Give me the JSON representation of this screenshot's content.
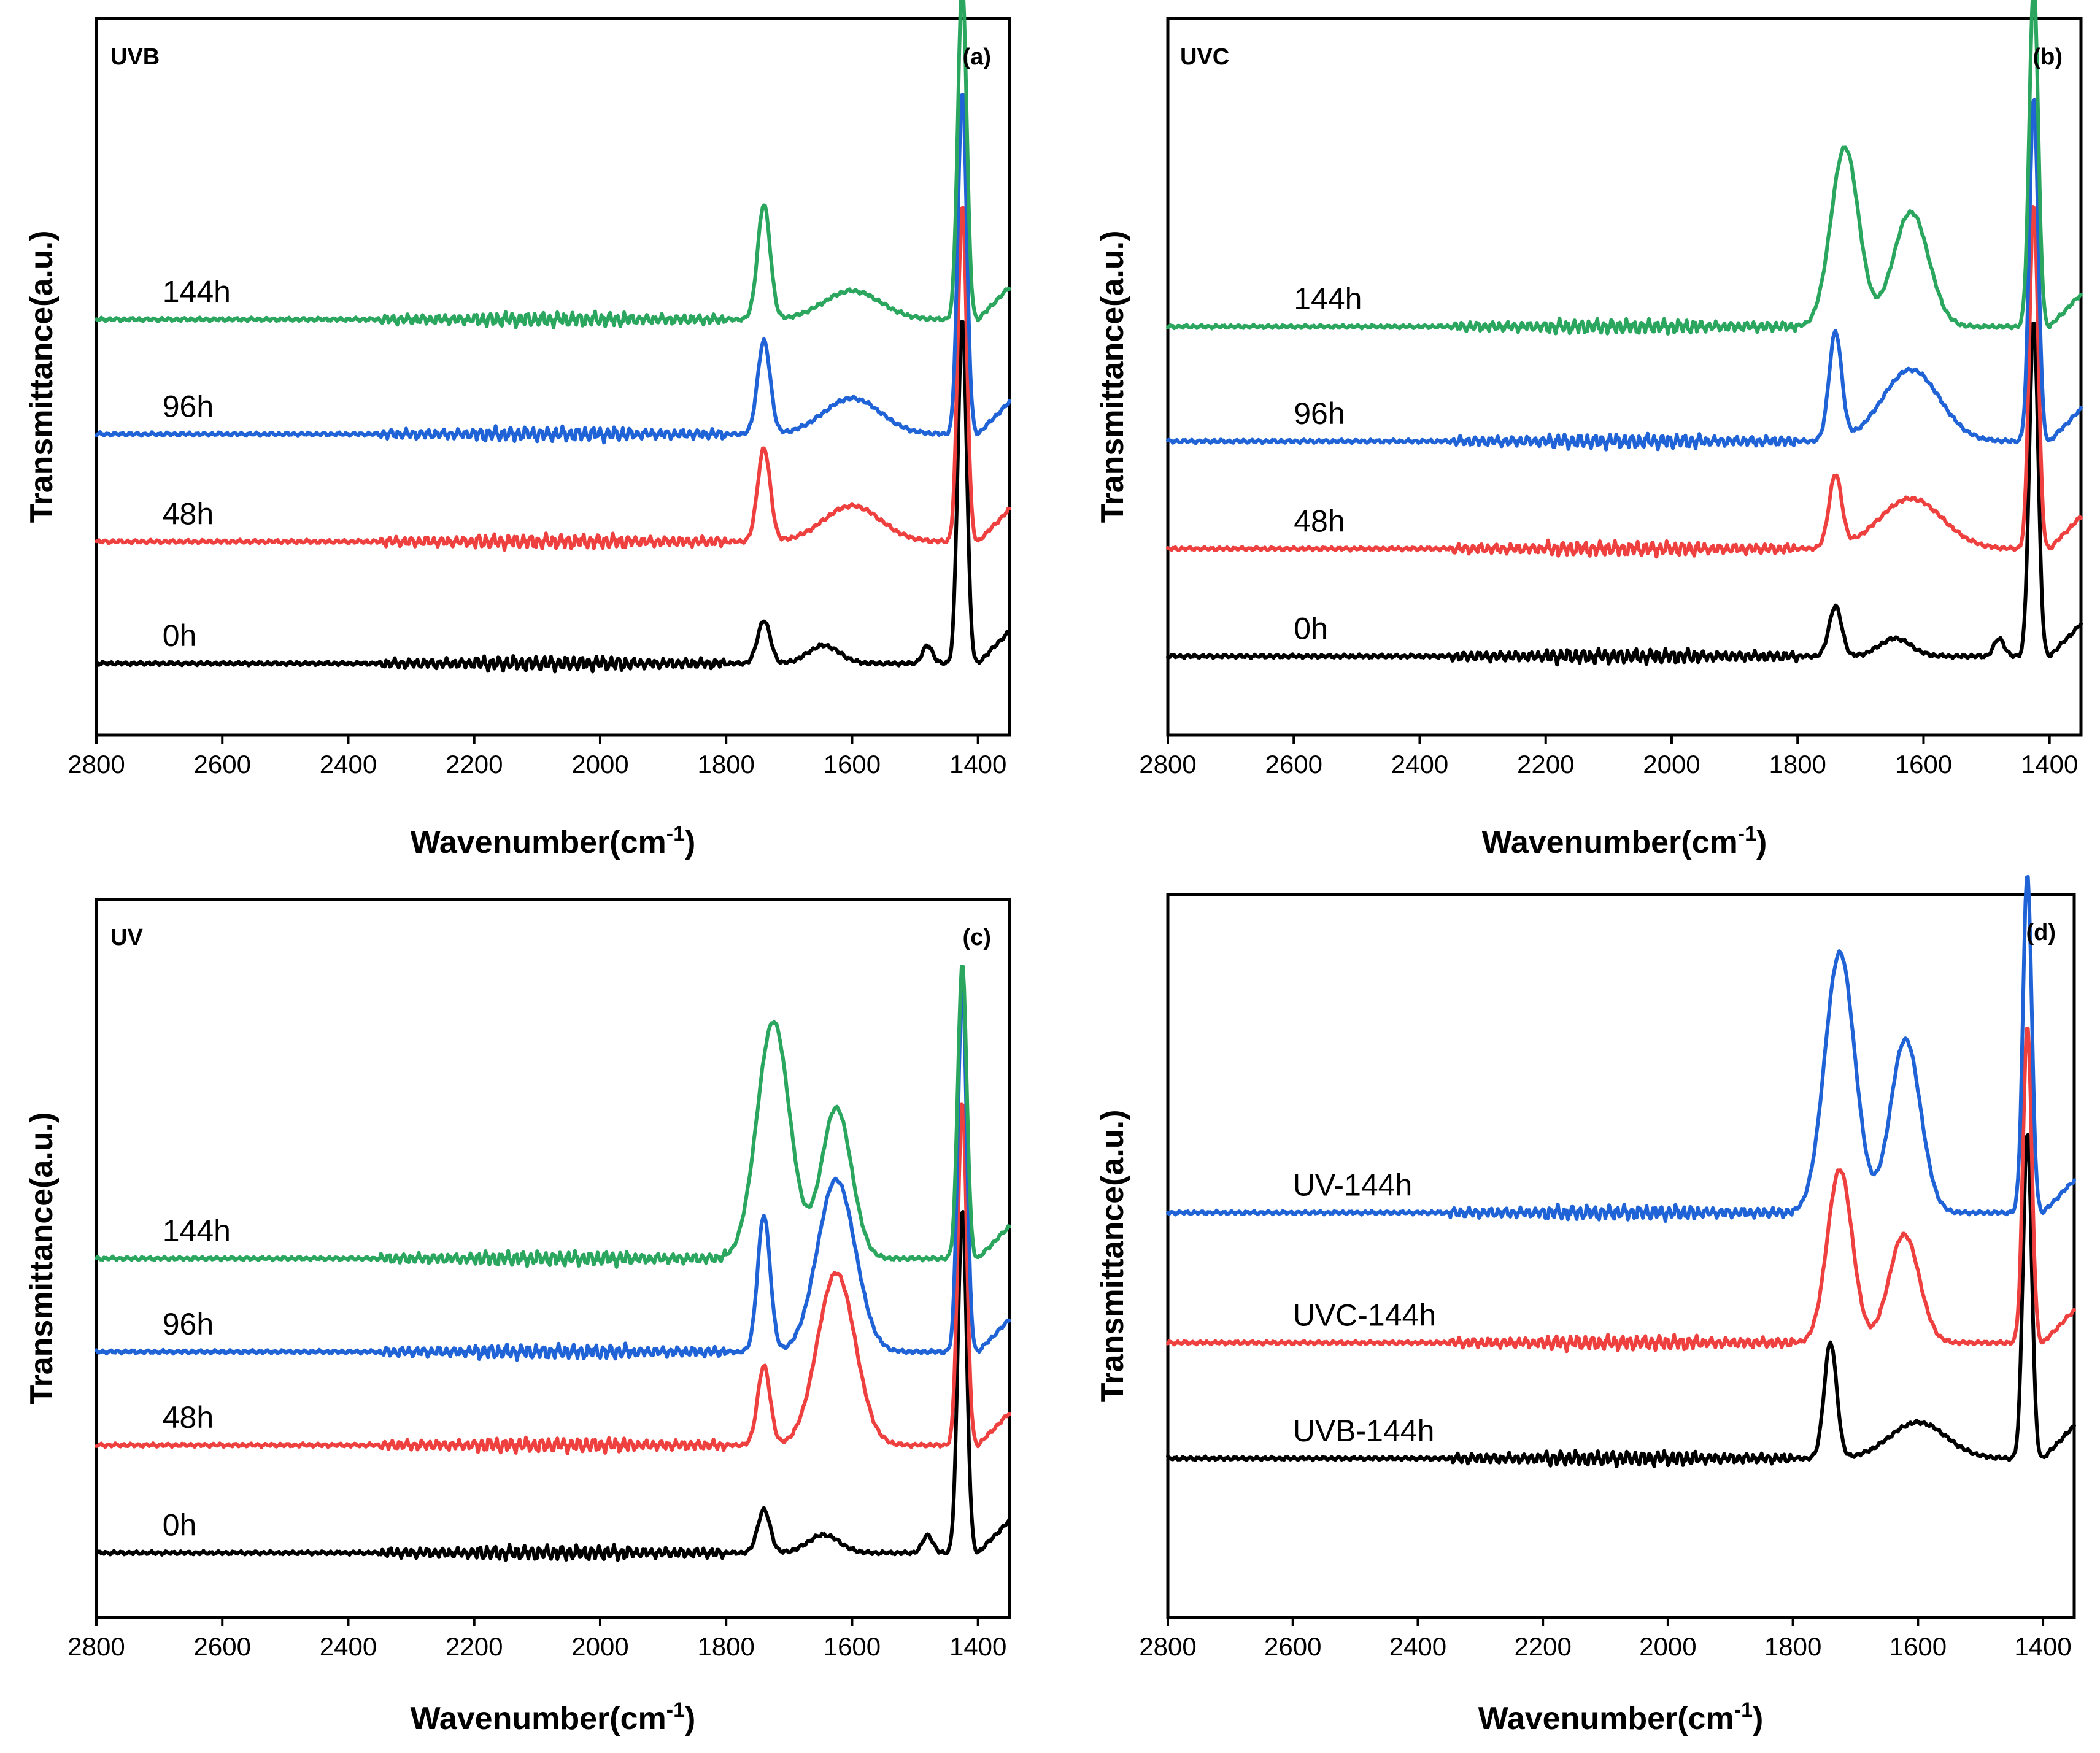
{
  "chart_data": [
    {
      "type": "line",
      "panel": "(a)",
      "title": "UVB",
      "xlabel": "Wavenumber(cm-1)",
      "xlabel_main": "Wavenumber(cm",
      "xlabel_sup": "-1",
      "xlabel_close": ")",
      "ylabel": "Transmittance(a.u.)",
      "xlim": [
        2800,
        1350
      ],
      "x_ticks": [
        2800,
        2600,
        2400,
        2200,
        2000,
        1800,
        1600,
        1400
      ],
      "ylim": [
        0,
        1
      ],
      "series": [
        {
          "name": "0h",
          "color": "#000000",
          "baseline": 0.1,
          "peaks": [
            [
              1740,
              0.06,
              10
            ],
            [
              1645,
              0.025,
              25
            ],
            [
              1480,
              0.025,
              8
            ],
            [
              1425,
              0.48,
              7
            ]
          ],
          "label_x": 2695
        },
        {
          "name": "48h",
          "color": "#ef4040",
          "baseline": 0.27,
          "peaks": [
            [
              1740,
              0.13,
              10
            ],
            [
              1600,
              0.05,
              45
            ],
            [
              1425,
              0.47,
              7
            ]
          ],
          "label_x": 2695
        },
        {
          "name": "96h",
          "color": "#1f63d6",
          "baseline": 0.42,
          "peaks": [
            [
              1740,
              0.13,
              10
            ],
            [
              1600,
              0.05,
              45
            ],
            [
              1425,
              0.48,
              7
            ]
          ],
          "label_x": 2695
        },
        {
          "name": "144h",
          "color": "#2aa65e",
          "baseline": 0.58,
          "peaks": [
            [
              1740,
              0.16,
              10
            ],
            [
              1600,
              0.04,
              45
            ],
            [
              1425,
              0.47,
              7
            ]
          ],
          "label_x": 2695
        }
      ]
    },
    {
      "type": "line",
      "panel": "(b)",
      "title": "UVC",
      "xlabel": "Wavenumber(cm-1)",
      "xlabel_main": "Wavenumber(cm",
      "xlabel_sup": "-1",
      "xlabel_close": ")",
      "ylabel": "Transmittance(a.u.)",
      "xlim": [
        2800,
        1350
      ],
      "x_ticks": [
        2800,
        2600,
        2400,
        2200,
        2000,
        1800,
        1600,
        1400
      ],
      "ylim": [
        0,
        1
      ],
      "series": [
        {
          "name": "0h",
          "color": "#000000",
          "baseline": 0.11,
          "peaks": [
            [
              1740,
              0.07,
              10
            ],
            [
              1645,
              0.025,
              25
            ],
            [
              1480,
              0.025,
              8
            ],
            [
              1425,
              0.47,
              7
            ]
          ],
          "label_x": 2600
        },
        {
          "name": "48h",
          "color": "#ef4040",
          "baseline": 0.26,
          "peaks": [
            [
              1740,
              0.1,
              10
            ],
            [
              1620,
              0.07,
              50
            ],
            [
              1425,
              0.48,
              7
            ]
          ],
          "label_x": 2600
        },
        {
          "name": "96h",
          "color": "#1f63d6",
          "baseline": 0.41,
          "peaks": [
            [
              1740,
              0.15,
              10
            ],
            [
              1620,
              0.1,
              45
            ],
            [
              1425,
              0.48,
              7
            ]
          ],
          "label_x": 2600
        },
        {
          "name": "144h",
          "color": "#2aa65e",
          "baseline": 0.57,
          "peaks": [
            [
              1725,
              0.25,
              22
            ],
            [
              1620,
              0.16,
              28
            ],
            [
              1425,
              0.48,
              7
            ]
          ],
          "label_x": 2600
        }
      ]
    },
    {
      "type": "line",
      "panel": "(c)",
      "title": "UV",
      "xlabel": "Wavenumber(cm-1)",
      "xlabel_main": "Wavenumber(cm",
      "xlabel_sup": "-1",
      "xlabel_close": ")",
      "ylabel": "Transmittance(a.u.)",
      "xlim": [
        2800,
        1350
      ],
      "x_ticks": [
        2800,
        2600,
        2400,
        2200,
        2000,
        1800,
        1600,
        1400
      ],
      "ylim": [
        0,
        1
      ],
      "series": [
        {
          "name": "0h",
          "color": "#000000",
          "baseline": 0.09,
          "peaks": [
            [
              1740,
              0.06,
              10
            ],
            [
              1645,
              0.025,
              25
            ],
            [
              1480,
              0.025,
              8
            ],
            [
              1425,
              0.48,
              7
            ]
          ],
          "label_x": 2695
        },
        {
          "name": "48h",
          "color": "#ef4040",
          "baseline": 0.24,
          "peaks": [
            [
              1740,
              0.11,
              10
            ],
            [
              1625,
              0.24,
              30
            ],
            [
              1425,
              0.48,
              7
            ]
          ],
          "label_x": 2695
        },
        {
          "name": "96h",
          "color": "#1f63d6",
          "baseline": 0.37,
          "peaks": [
            [
              1740,
              0.19,
              10
            ],
            [
              1625,
              0.24,
              30
            ],
            [
              1425,
              0.51,
              7
            ]
          ],
          "label_x": 2695
        },
        {
          "name": "144h",
          "color": "#2aa65e",
          "baseline": 0.5,
          "peaks": [
            [
              1725,
              0.33,
              26
            ],
            [
              1625,
              0.21,
              24
            ],
            [
              1425,
              0.41,
              7
            ]
          ],
          "label_x": 2695
        }
      ]
    },
    {
      "type": "line",
      "panel": "(d)",
      "title": "",
      "xlabel": "Wavenumber(cm-1)",
      "xlabel_main": "Wavenumber(cm",
      "xlabel_sup": "-1",
      "xlabel_close": ")",
      "ylabel": "Transmittance(a.u.)",
      "xlim": [
        2800,
        1350
      ],
      "x_ticks": [
        2800,
        2600,
        2400,
        2200,
        2000,
        1800,
        1600,
        1400
      ],
      "ylim": [
        0,
        1
      ],
      "series": [
        {
          "name": "UVB-144h",
          "color": "#000000",
          "baseline": 0.22,
          "peaks": [
            [
              1740,
              0.16,
              10
            ],
            [
              1600,
              0.05,
              45
            ],
            [
              1425,
              0.45,
              7
            ]
          ],
          "label_x": 2600
        },
        {
          "name": "UVC-144h",
          "color": "#ef4040",
          "baseline": 0.38,
          "peaks": [
            [
              1725,
              0.24,
              20
            ],
            [
              1622,
              0.15,
              24
            ],
            [
              1425,
              0.44,
              7
            ]
          ],
          "label_x": 2600
        },
        {
          "name": "UV-144h",
          "color": "#1f63d6",
          "baseline": 0.56,
          "peaks": [
            [
              1725,
              0.36,
              24
            ],
            [
              1620,
              0.24,
              24
            ],
            [
              1425,
              0.47,
              7
            ]
          ],
          "label_x": 2600
        }
      ]
    }
  ]
}
